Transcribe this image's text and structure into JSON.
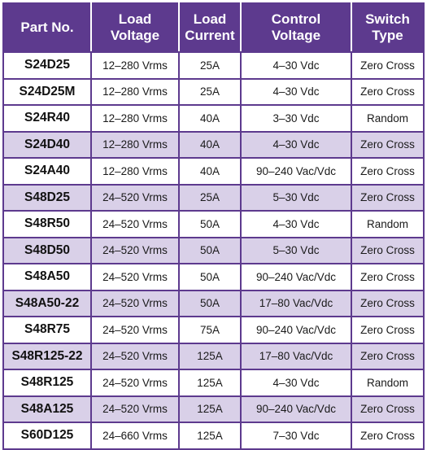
{
  "columns": [
    "Part No.",
    "Load\nVoltage",
    "Load\nCurrent",
    "Control\nVoltage",
    "Switch\nType"
  ],
  "rows": [
    {
      "part": "S24D25",
      "voltage": "12–280 Vrms",
      "current": "25A",
      "control": "4–30 Vdc",
      "type": "Zero Cross",
      "shaded": false
    },
    {
      "part": "S24D25M",
      "voltage": "12–280 Vrms",
      "current": "25A",
      "control": "4–30 Vdc",
      "type": "Zero Cross",
      "shaded": false
    },
    {
      "part": "S24R40",
      "voltage": "12–280 Vrms",
      "current": "40A",
      "control": "3–30 Vdc",
      "type": "Random",
      "shaded": false
    },
    {
      "part": "S24D40",
      "voltage": "12–280 Vrms",
      "current": "40A",
      "control": "4–30 Vdc",
      "type": "Zero Cross",
      "shaded": true
    },
    {
      "part": "S24A40",
      "voltage": "12–280 Vrms",
      "current": "40A",
      "control": "90–240 Vac/Vdc",
      "type": "Zero Cross",
      "shaded": false
    },
    {
      "part": "S48D25",
      "voltage": "24–520 Vrms",
      "current": "25A",
      "control": "5–30 Vdc",
      "type": "Zero Cross",
      "shaded": true
    },
    {
      "part": "S48R50",
      "voltage": "24–520 Vrms",
      "current": "50A",
      "control": "4–30 Vdc",
      "type": "Random",
      "shaded": false
    },
    {
      "part": "S48D50",
      "voltage": "24–520 Vrms",
      "current": "50A",
      "control": "5–30 Vdc",
      "type": "Zero Cross",
      "shaded": true
    },
    {
      "part": "S48A50",
      "voltage": "24–520 Vrms",
      "current": "50A",
      "control": "90–240 Vac/Vdc",
      "type": "Zero Cross",
      "shaded": false
    },
    {
      "part": "S48A50-22",
      "voltage": "24–520 Vrms",
      "current": "50A",
      "control": "17–80 Vac/Vdc",
      "type": "Zero Cross",
      "shaded": true
    },
    {
      "part": "S48R75",
      "voltage": "24–520 Vrms",
      "current": "75A",
      "control": "90–240 Vac/Vdc",
      "type": "Zero Cross",
      "shaded": false
    },
    {
      "part": "S48R125-22",
      "voltage": "24–520 Vrms",
      "current": "125A",
      "control": "17–80 Vac/Vdc",
      "type": "Zero Cross",
      "shaded": true
    },
    {
      "part": "S48R125",
      "voltage": "24–520 Vrms",
      "current": "125A",
      "control": "4–30 Vdc",
      "type": "Random",
      "shaded": false
    },
    {
      "part": "S48A125",
      "voltage": "24–520 Vrms",
      "current": "125A",
      "control": "90–240 Vac/Vdc",
      "type": "Zero Cross",
      "shaded": true
    },
    {
      "part": "S60D125",
      "voltage": "24–660 Vrms",
      "current": "125A",
      "control": "7–30 Vdc",
      "type": "Zero Cross",
      "shaded": false
    }
  ],
  "colors": {
    "header": "#5d3a8e",
    "shaded_row": "#d9d0e8",
    "border": "#5d3a8e"
  }
}
